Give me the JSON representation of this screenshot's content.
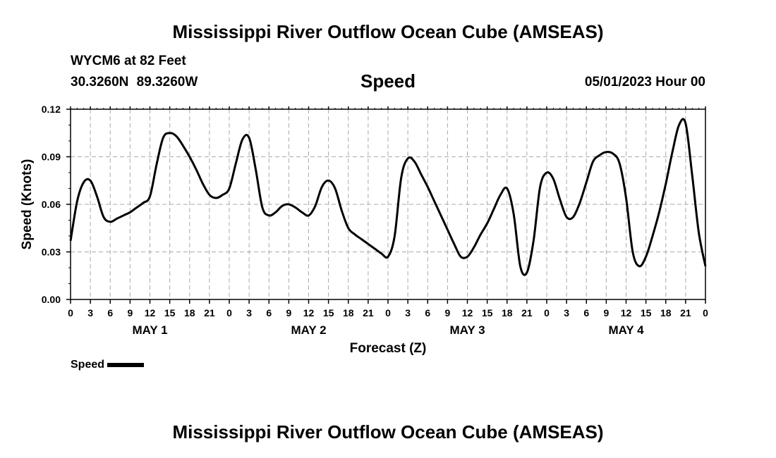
{
  "title": "Mississippi River Outflow Ocean Cube (AMSEAS)",
  "station": "WYCM6 at 82 Feet",
  "coords": "30.3260N  89.3260W",
  "subtitle": "Speed",
  "date": "05/01/2023 Hour 00",
  "legend_label": "Speed",
  "chart_data": {
    "type": "line",
    "title": "Speed",
    "xlabel": "Forecast (Z)",
    "ylabel": "Speed (Knots)",
    "ylim": [
      0,
      0.12
    ],
    "yticks": [
      "0.00",
      "0.03",
      "0.06",
      "0.09",
      "0.12"
    ],
    "xlim": [
      0,
      96
    ],
    "xtick_labels": [
      "0",
      "3",
      "6",
      "9",
      "12",
      "15",
      "18",
      "21",
      "0",
      "3",
      "6",
      "9",
      "12",
      "15",
      "18",
      "21",
      "0",
      "3",
      "6",
      "9",
      "12",
      "15",
      "18",
      "21",
      "0",
      "3",
      "6",
      "9",
      "12",
      "15",
      "18",
      "21",
      "0"
    ],
    "day_labels": [
      "MAY 1",
      "MAY 2",
      "MAY 3",
      "MAY 4"
    ],
    "grid": true,
    "series": [
      {
        "name": "Speed",
        "color": "#000000",
        "x": [
          0,
          1,
          2,
          3,
          4,
          5,
          6,
          7,
          8,
          9,
          10,
          11,
          12,
          13,
          14,
          15,
          16,
          17,
          18,
          19,
          20,
          21,
          22,
          23,
          24,
          25,
          26,
          27,
          28,
          29,
          30,
          31,
          32,
          33,
          34,
          35,
          36,
          37,
          38,
          39,
          40,
          41,
          42,
          43,
          44,
          45,
          46,
          47,
          48,
          49,
          50,
          51,
          52,
          53,
          54,
          55,
          56,
          57,
          58,
          59,
          60,
          61,
          62,
          63,
          64,
          65,
          66,
          67,
          68,
          69,
          70,
          71,
          72,
          73,
          74,
          75,
          76,
          77,
          78,
          79,
          80,
          81,
          82,
          83,
          84,
          85,
          86,
          87,
          88,
          89,
          90,
          91,
          92,
          93,
          94,
          95,
          96
        ],
        "values": [
          0.037,
          0.062,
          0.074,
          0.075,
          0.065,
          0.052,
          0.049,
          0.051,
          0.053,
          0.055,
          0.058,
          0.061,
          0.065,
          0.085,
          0.102,
          0.105,
          0.103,
          0.097,
          0.09,
          0.082,
          0.073,
          0.066,
          0.064,
          0.066,
          0.07,
          0.086,
          0.101,
          0.102,
          0.082,
          0.058,
          0.053,
          0.055,
          0.059,
          0.06,
          0.058,
          0.055,
          0.053,
          0.059,
          0.071,
          0.075,
          0.07,
          0.056,
          0.045,
          0.041,
          0.038,
          0.035,
          0.032,
          0.029,
          0.027,
          0.04,
          0.077,
          0.089,
          0.087,
          0.079,
          0.071,
          0.062,
          0.053,
          0.044,
          0.035,
          0.027,
          0.027,
          0.033,
          0.041,
          0.048,
          0.057,
          0.066,
          0.07,
          0.054,
          0.021,
          0.017,
          0.037,
          0.071,
          0.08,
          0.076,
          0.063,
          0.052,
          0.052,
          0.061,
          0.074,
          0.087,
          0.091,
          0.093,
          0.092,
          0.086,
          0.064,
          0.03,
          0.021,
          0.027,
          0.04,
          0.055,
          0.073,
          0.093,
          0.11,
          0.111,
          0.078,
          0.042,
          0.021
        ]
      }
    ]
  }
}
